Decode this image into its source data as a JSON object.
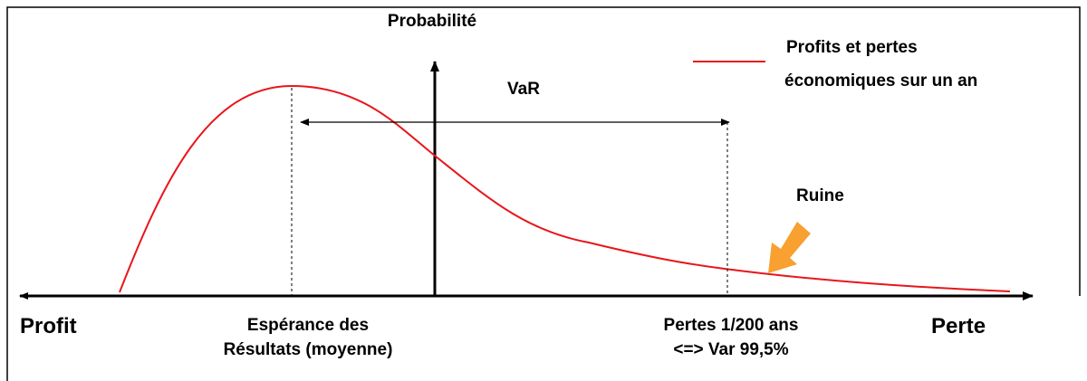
{
  "axes": {
    "y_label": "Probabilité",
    "x_left_label": "Profit",
    "x_right_label": "Perte"
  },
  "legend": {
    "lines": [
      "Profits et pertes",
      "économiques sur un an"
    ]
  },
  "annotations": {
    "var": "VaR",
    "ruin": "Ruine",
    "mean": [
      "Espérance des",
      "Résultats (moyenne)"
    ],
    "loss": [
      "Pertes 1/200 ans",
      "<=> Var 99,5%"
    ]
  }
}
